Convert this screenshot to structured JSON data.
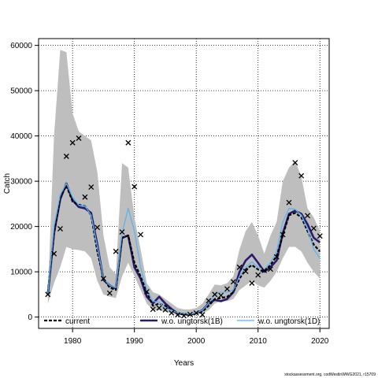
{
  "chart_data": {
    "type": "line",
    "xlabel": "Years",
    "ylabel": "Catch",
    "xlim": [
      1974.5,
      2021.5
    ],
    "ylim": [
      -2500,
      61500
    ],
    "x_ticks": [
      1980,
      1990,
      2000,
      2010,
      2020
    ],
    "y_ticks": [
      0,
      10000,
      20000,
      30000,
      40000,
      50000,
      60000
    ],
    "grid": "dotted",
    "legend_position": "bottom",
    "colors": {
      "band": "#bebebe",
      "current": "#000000",
      "ungtorsk1b": "#2a1a6e",
      "ungtorsk1d": "#5ab4f0"
    },
    "years": [
      1976,
      1977,
      1978,
      1979,
      1980,
      1981,
      1982,
      1983,
      1984,
      1985,
      1986,
      1987,
      1988,
      1989,
      1990,
      1991,
      1992,
      1993,
      1994,
      1995,
      1996,
      1997,
      1998,
      1999,
      2000,
      2001,
      2002,
      2003,
      2004,
      2005,
      2006,
      2007,
      2008,
      2009,
      2010,
      2011,
      2012,
      2013,
      2014,
      2015,
      2016,
      2017,
      2018,
      2019,
      2020
    ],
    "band_upper": [
      5000,
      40000,
      59000,
      58500,
      45000,
      41000,
      40000,
      39000,
      32000,
      18000,
      11000,
      9500,
      34000,
      33000,
      22000,
      15000,
      7500,
      5500,
      5000,
      4000,
      3000,
      2000,
      1700,
      1700,
      2000,
      3000,
      5000,
      7200,
      7000,
      7500,
      9000,
      15000,
      19000,
      21000,
      18000,
      14000,
      18000,
      21000,
      30000,
      33000,
      34500,
      31000,
      24000,
      22000,
      19000
    ],
    "band_lower": [
      3000,
      7500,
      11000,
      15500,
      15000,
      14800,
      14500,
      13000,
      8000,
      5000,
      4500,
      4200,
      9000,
      12000,
      9000,
      6000,
      3000,
      1500,
      1500,
      1200,
      800,
      400,
      300,
      300,
      600,
      800,
      1500,
      3000,
      3500,
      3500,
      4000,
      6000,
      7000,
      8000,
      7000,
      6500,
      8000,
      10000,
      13000,
      15500,
      15500,
      14500,
      12000,
      10000,
      8500
    ],
    "series": [
      {
        "name": "current",
        "values": [
          5500,
          18500,
          26500,
          29000,
          25500,
          24800,
          24500,
          22500,
          14500,
          8500,
          6500,
          6000,
          17500,
          18000,
          12000,
          9000,
          5500,
          2500,
          3000,
          2500,
          1500,
          700,
          600,
          500,
          800,
          1200,
          2500,
          4000,
          4200,
          4500,
          5500,
          8500,
          10500,
          11500,
          10500,
          10000,
          11500,
          13500,
          18000,
          22500,
          23000,
          22000,
          19000,
          16000,
          14500
        ]
      },
      {
        "name": "w.o. ungtorsk(1B)",
        "values": [
          5000,
          18500,
          26000,
          29500,
          25800,
          24300,
          24000,
          23000,
          16000,
          8200,
          7000,
          6300,
          17500,
          18000,
          11000,
          8500,
          4500,
          3000,
          4500,
          3000,
          1800,
          800,
          700,
          500,
          900,
          1500,
          3000,
          3800,
          3500,
          4000,
          5500,
          10000,
          12500,
          13800,
          12000,
          10000,
          11000,
          12500,
          18500,
          22800,
          23500,
          22800,
          20500,
          17500,
          16500
        ]
      },
      {
        "name": "w.o. ungtorsk(1D)",
        "values": [
          5200,
          20000,
          27000,
          29500,
          26500,
          24700,
          24500,
          22500,
          15500,
          8500,
          7000,
          6500,
          18500,
          24000,
          19000,
          11000,
          6000,
          3500,
          3300,
          2000,
          1500,
          900,
          800,
          600,
          1000,
          1500,
          3000,
          5000,
          5500,
          5500,
          6000,
          9000,
          11000,
          12200,
          11000,
          10500,
          12000,
          14500,
          21000,
          24000,
          23800,
          22500,
          19500,
          15000,
          13000
        ]
      }
    ],
    "observed": {
      "marker": "x",
      "x": [
        1976,
        1977,
        1978,
        1979,
        1980,
        1981,
        1982,
        1983,
        1984,
        1985,
        1986,
        1987,
        1988,
        1989,
        1990,
        1991,
        1992,
        1993,
        1994,
        1995,
        1996,
        1997,
        1998,
        1999,
        2000,
        2001,
        2002,
        2003,
        2004,
        2005,
        2006,
        2007,
        2008,
        2009,
        2010,
        2011,
        2012,
        2013,
        2014,
        2015,
        2016,
        2017,
        2018,
        2019,
        2020
      ],
      "y": [
        5000,
        14000,
        19500,
        35500,
        38500,
        39500,
        26500,
        28700,
        19800,
        8500,
        5300,
        14500,
        18800,
        38500,
        28800,
        18200,
        5600,
        1700,
        2000,
        1600,
        900,
        500,
        300,
        600,
        900,
        500,
        3600,
        5000,
        4800,
        6200,
        7800,
        11000,
        10100,
        7500,
        9300,
        10300,
        10600,
        13300,
        18200,
        25300,
        34100,
        31200,
        22400,
        19600,
        17900
      ]
    },
    "credit": "stockassessment.org, codWestlnWWG2021, r15709"
  }
}
